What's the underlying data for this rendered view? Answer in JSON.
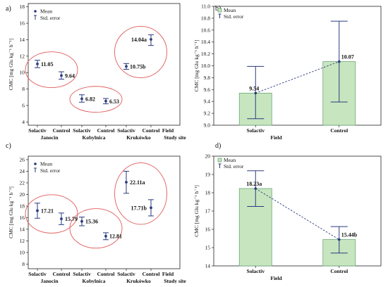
{
  "panels": [
    {
      "id": "a",
      "label": "a)",
      "ylabel": "CMC [mg Glu kg⁻¹ h⁻¹]",
      "legend": [
        "Mean",
        "Std. error"
      ],
      "xlabels_top": [
        "Solactiv",
        "Control",
        "Solactiv",
        "Control",
        "Solactiv",
        "Control",
        "Field"
      ],
      "xlabels_bottom": [
        "Janocin",
        "Kobylnica",
        "Krukówko",
        "Study site"
      ],
      "ticks": [
        "4",
        "6",
        "8",
        "10",
        "12",
        "14",
        "16",
        "18"
      ]
    },
    {
      "id": "b",
      "label": "b)",
      "ylabel": "CMC [mg Glu kg⁻¹ h⁻¹]",
      "legend": [
        "Mean",
        "Std. error"
      ],
      "xlabel": "Field",
      "categories": [
        "Solactiv",
        "Control"
      ],
      "ticks": [
        "9.0",
        "9.2",
        "9.4",
        "9.6",
        "9.8",
        "10.0",
        "10.2",
        "10.4",
        "10.6",
        "10.8",
        "11.0"
      ]
    },
    {
      "id": "c",
      "label": "c)",
      "ylabel": "CMC [mg Glu kg⁻¹ h⁻¹]",
      "legend": [
        "Mean",
        "Std. error"
      ],
      "xlabels_top": [
        "Solactiv",
        "Control",
        "Solactiv",
        "Control",
        "Solactiv",
        "Control",
        "Field"
      ],
      "xlabels_bottom": [
        "Janocin",
        "Kobylnica",
        "Krukówko",
        "Study site"
      ],
      "ticks": [
        "8",
        "10",
        "12",
        "14",
        "16",
        "18",
        "20",
        "22",
        "24",
        "26"
      ]
    },
    {
      "id": "d",
      "label": "d)",
      "ylabel": "CMC [mg Glu kg⁻¹ h⁻¹]",
      "legend": [
        "Mean",
        "Std. error"
      ],
      "xlabel": "Field",
      "categories": [
        "Solactiv",
        "Control"
      ],
      "ticks": [
        "14",
        "15",
        "16",
        "17",
        "18",
        "19",
        "20"
      ]
    }
  ],
  "chart_data": [
    {
      "panel": "a",
      "type": "scatter",
      "ylim": [
        3.6,
        18.4
      ],
      "points": [
        {
          "x": "Janocin Solactiv",
          "y": 11.05,
          "lo": 10.6,
          "hi": 11.5,
          "label": "11.05"
        },
        {
          "x": "Janocin Control",
          "y": 9.64,
          "lo": 9.2,
          "hi": 10.1,
          "label": "9.64"
        },
        {
          "x": "Kobylnica Solactiv",
          "y": 6.82,
          "lo": 6.4,
          "hi": 7.3,
          "label": "6.82"
        },
        {
          "x": "Kobylnica Control",
          "y": 6.53,
          "lo": 6.2,
          "hi": 6.85,
          "label": "6.53"
        },
        {
          "x": "Krukówko Solactiv",
          "y": 10.75,
          "lo": 10.4,
          "hi": 11.1,
          "label": "10.75b"
        },
        {
          "x": "Krukówko Control",
          "y": 14.04,
          "lo": 13.3,
          "hi": 14.6,
          "label": "14.04a"
        }
      ]
    },
    {
      "panel": "b",
      "type": "bar",
      "ylim": [
        9.0,
        11.0
      ],
      "categories": [
        "Solactiv",
        "Control"
      ],
      "values": [
        9.54,
        10.07
      ],
      "errors": [
        [
          9.11,
          9.99
        ],
        [
          9.39,
          10.75
        ]
      ],
      "labels": [
        "9.54",
        "10.07"
      ]
    },
    {
      "panel": "c",
      "type": "scatter",
      "ylim": [
        7.2,
        26.6
      ],
      "points": [
        {
          "x": "Janocin Solactiv",
          "y": 17.21,
          "lo": 15.9,
          "hi": 18.5,
          "label": "17.21"
        },
        {
          "x": "Janocin Control",
          "y": 15.79,
          "lo": 14.8,
          "hi": 16.8,
          "label": "15.79"
        },
        {
          "x": "Kobylnica Solactiv",
          "y": 15.36,
          "lo": 14.6,
          "hi": 16.1,
          "label": "15.36"
        },
        {
          "x": "Kobylnica Control",
          "y": 12.81,
          "lo": 12.2,
          "hi": 13.4,
          "label": "12.81"
        },
        {
          "x": "Krukówko Solactiv",
          "y": 22.11,
          "lo": 20.2,
          "hi": 24.0,
          "label": "22.11a"
        },
        {
          "x": "Krukówko Control",
          "y": 17.71,
          "lo": 16.3,
          "hi": 19.1,
          "label": "17.71b"
        }
      ]
    },
    {
      "panel": "d",
      "type": "bar",
      "ylim": [
        14,
        20
      ],
      "categories": [
        "Solactiv",
        "Control"
      ],
      "values": [
        18.23,
        15.44
      ],
      "errors": [
        [
          17.25,
          19.2
        ],
        [
          14.7,
          16.15
        ]
      ],
      "labels": [
        "18.23a",
        "15.44b"
      ]
    }
  ]
}
